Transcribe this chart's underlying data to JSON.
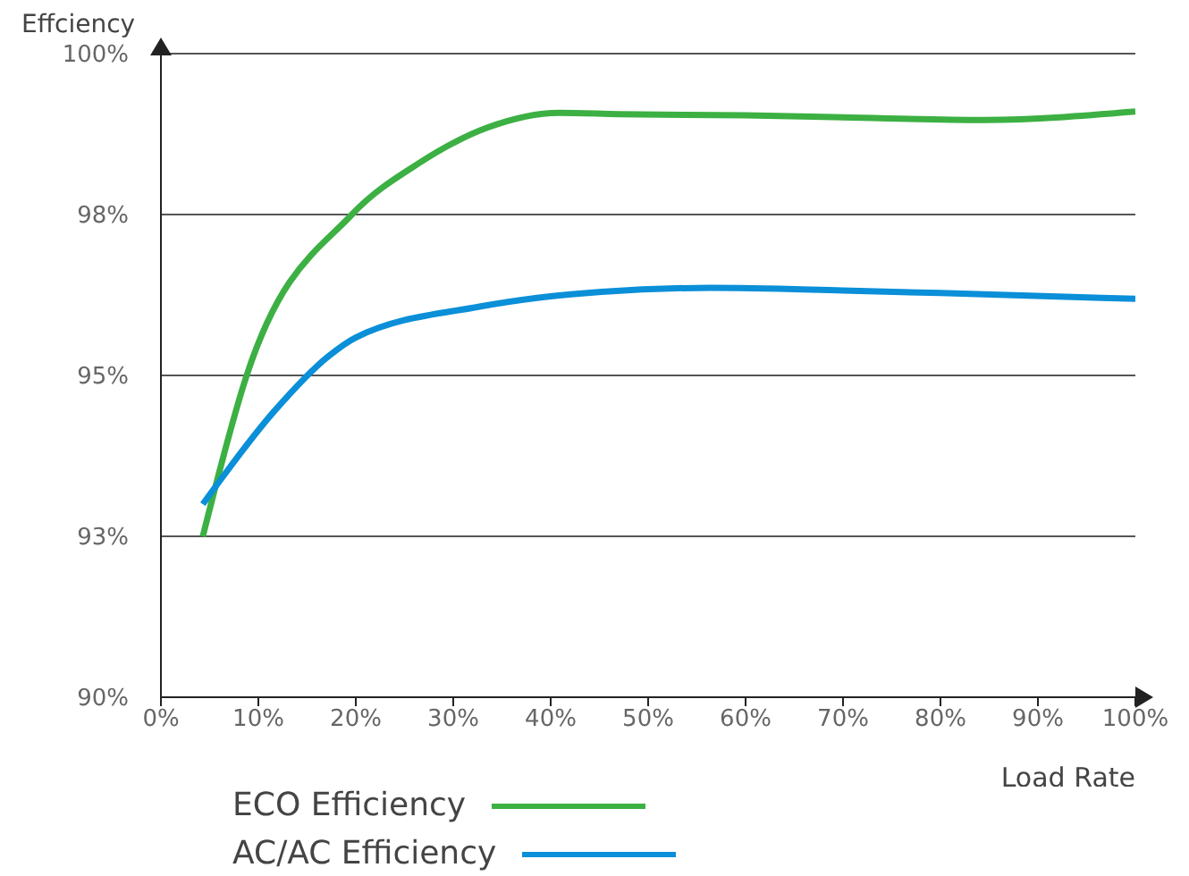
{
  "chart_data": {
    "type": "line",
    "ylabel": "Effciency",
    "xlabel": "Load Rate",
    "xlim": [
      0,
      100
    ],
    "xticks": [
      {
        "value": 0,
        "label": "0%"
      },
      {
        "value": 10,
        "label": "10%"
      },
      {
        "value": 20,
        "label": "20%"
      },
      {
        "value": 30,
        "label": "30%"
      },
      {
        "value": 40,
        "label": "40%"
      },
      {
        "value": 50,
        "label": "50%"
      },
      {
        "value": 60,
        "label": "60%"
      },
      {
        "value": 70,
        "label": "70%"
      },
      {
        "value": 80,
        "label": "80%"
      },
      {
        "value": 90,
        "label": "90%"
      },
      {
        "value": 100,
        "label": "100%"
      }
    ],
    "ylim": [
      90,
      100
    ],
    "yticks": [
      {
        "value": 90,
        "label": "90%"
      },
      {
        "value": 92.5,
        "label": "93%"
      },
      {
        "value": 95,
        "label": "95%"
      },
      {
        "value": 97.5,
        "label": "98%"
      },
      {
        "value": 100,
        "label": "100%"
      }
    ],
    "grid": "y",
    "legend": "bottom",
    "marker": "none",
    "line_style": "solid",
    "series": [
      {
        "name": "ECO Efficiency",
        "color": "#3cb043",
        "x": [
          4.3,
          8.8,
          19.6,
          26.5,
          33.5,
          40.9,
          47,
          60,
          70,
          84.5,
          100
        ],
        "values": [
          92.5,
          95,
          97.5,
          98.3,
          98.85,
          99.08,
          99.06,
          99.04,
          99.01,
          98.97,
          99.1
        ]
      },
      {
        "name": "AC/AC Efficiency",
        "color": "#0a8fd8",
        "x": [
          4.3,
          11.6,
          17.2,
          20,
          32.7,
          45.2,
          56.4,
          70,
          80,
          100
        ],
        "values": [
          93,
          94.44,
          95.3,
          95.59,
          96.07,
          96.3,
          96.36,
          96.32,
          96.28,
          96.19
        ]
      }
    ]
  }
}
